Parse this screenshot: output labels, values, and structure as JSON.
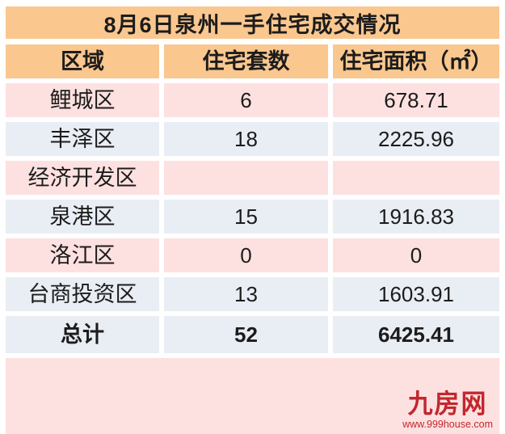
{
  "chart_data": {
    "type": "table",
    "title": "8月6日泉州一手住宅成交情况",
    "columns": [
      "区域",
      "住宅套数",
      "住宅面积（㎡）"
    ],
    "rows": [
      [
        "鲤城区",
        6,
        678.71
      ],
      [
        "丰泽区",
        18,
        2225.96
      ],
      [
        "经济开发区",
        null,
        null
      ],
      [
        "泉港区",
        15,
        1916.83
      ],
      [
        "洛江区",
        0,
        0
      ],
      [
        "台商投资区",
        13,
        1603.91
      ],
      [
        "总计",
        52,
        6425.41
      ]
    ],
    "layout_hints": {
      "total_row_index": 6,
      "banding": "pink/blue alternating rows, orange title and header"
    }
  },
  "footer": {
    "logo_text": "九房网",
    "logo_url": "www.999house.com"
  },
  "colors": {
    "title_header_bg": "#FAC78F",
    "row_pink": "#FDE1E0",
    "row_blue": "#E9EDF4",
    "footer_pink": "#FDE1E0",
    "logo_red": "#C2272D",
    "text": "#1C1C1C",
    "grid_line": "#FFFFFF"
  }
}
